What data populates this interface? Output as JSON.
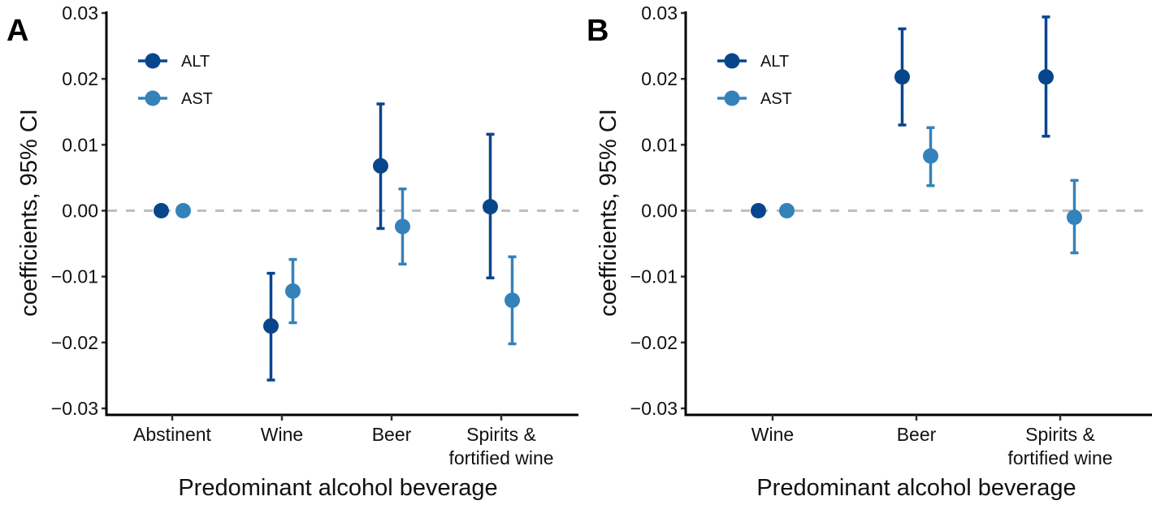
{
  "chart_data": [
    {
      "type": "scatter",
      "panel_label": "A",
      "title": "",
      "xlabel": "Predominant alcohol beverage",
      "ylabel": "coefficients, 95% CI",
      "ylim": [
        -0.03,
        0.03
      ],
      "yticks": [
        0.03,
        0.02,
        0.01,
        0.0,
        -0.01,
        -0.02,
        -0.03
      ],
      "ytick_labels": [
        "0.03",
        "0.02",
        "0.01",
        "0.00",
        "−0.01",
        "−0.02",
        "−0.03"
      ],
      "categories": [
        "Abstinent",
        "Wine",
        "Beer",
        "Spirits & fortified wine"
      ],
      "category_lines": [
        [
          "Abstinent"
        ],
        [
          "Wine"
        ],
        [
          "Beer"
        ],
        [
          "Spirits &",
          "fortified wine"
        ]
      ],
      "reference_line": 0,
      "legend": {
        "placement": "top-left",
        "entries": [
          "ALT",
          "AST"
        ]
      },
      "series": [
        {
          "name": "ALT",
          "color": "#08468C",
          "values": [
            0.0,
            -0.0175,
            0.0068,
            0.0006
          ],
          "ci_lower": [
            null,
            -0.0257,
            -0.0027,
            -0.0102
          ],
          "ci_upper": [
            null,
            -0.0095,
            0.0162,
            0.0116
          ]
        },
        {
          "name": "AST",
          "color": "#3582BB",
          "values": [
            0.0,
            -0.0122,
            -0.0024,
            -0.0136
          ],
          "ci_lower": [
            null,
            -0.017,
            -0.0081,
            -0.0202
          ],
          "ci_upper": [
            null,
            -0.0074,
            0.0033,
            -0.007
          ]
        }
      ]
    },
    {
      "type": "scatter",
      "panel_label": "B",
      "title": "",
      "xlabel": "Predominant alcohol beverage",
      "ylabel": "coefficients, 95% CI",
      "ylim": [
        -0.03,
        0.03
      ],
      "yticks": [
        0.03,
        0.02,
        0.01,
        0.0,
        -0.01,
        -0.02,
        -0.03
      ],
      "ytick_labels": [
        "0.03",
        "0.02",
        "0.01",
        "0.00",
        "−0.01",
        "−0.02",
        "−0.03"
      ],
      "categories": [
        "Wine",
        "Beer",
        "Spirits & fortified wine"
      ],
      "category_lines": [
        [
          "Wine"
        ],
        [
          "Beer"
        ],
        [
          "Spirits &",
          "fortified wine"
        ]
      ],
      "reference_line": 0,
      "legend": {
        "placement": "top-left",
        "entries": [
          "ALT",
          "AST"
        ]
      },
      "series": [
        {
          "name": "ALT",
          "color": "#08468C",
          "values": [
            0.0,
            0.0203,
            0.0203
          ],
          "ci_lower": [
            null,
            0.013,
            0.0113
          ],
          "ci_upper": [
            null,
            0.0276,
            0.0294
          ]
        },
        {
          "name": "AST",
          "color": "#3582BB",
          "values": [
            0.0,
            0.0083,
            -0.001
          ],
          "ci_lower": [
            null,
            0.0038,
            -0.0064
          ],
          "ci_upper": [
            null,
            0.0126,
            0.0046
          ]
        }
      ]
    }
  ]
}
